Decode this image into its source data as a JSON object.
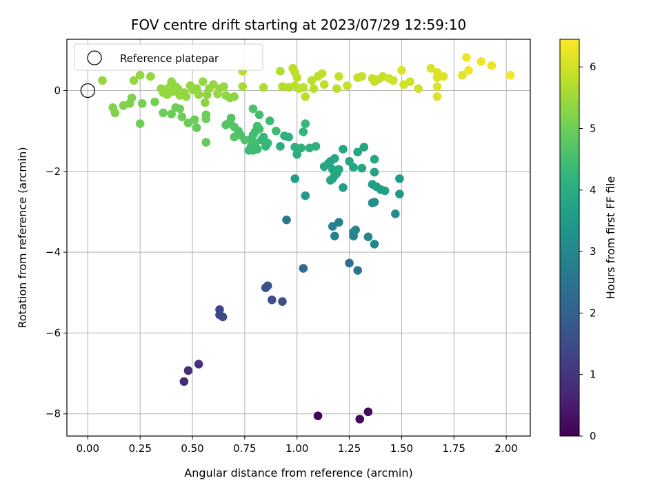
{
  "chart_data": {
    "type": "scatter",
    "title": "FOV centre drift starting at 2023/07/29 12:59:10",
    "xlabel": "Angular distance from reference (arcmin)",
    "ylabel": "Rotation from reference (arcmin)",
    "xlim": [
      -0.1,
      2.115
    ],
    "ylim": [
      -8.55,
      1.27
    ],
    "xticks": [
      0.0,
      0.25,
      0.5,
      0.75,
      1.0,
      1.25,
      1.5,
      1.75,
      2.0
    ],
    "xtick_labels": [
      "0.00",
      "0.25",
      "0.50",
      "0.75",
      "1.00",
      "1.25",
      "1.50",
      "1.75",
      "2.00"
    ],
    "yticks": [
      -8,
      -6,
      -4,
      -2,
      0
    ],
    "ytick_labels": [
      "−8",
      "−6",
      "−4",
      "−2",
      "0"
    ],
    "grid": true,
    "legend": {
      "position": "top-left",
      "entries": [
        {
          "label": "Reference platepar",
          "marker": "open-circle"
        }
      ]
    },
    "reference_point": {
      "x": 0.0,
      "y": 0.0
    },
    "colorbar": {
      "label": "Hours from first FF file",
      "colormap": "viridis",
      "range": [
        0,
        6.45
      ],
      "ticks": [
        0,
        1,
        2,
        3,
        4,
        5,
        6
      ],
      "tick_labels": [
        "0",
        "1",
        "2",
        "3",
        "4",
        "5",
        "6"
      ]
    },
    "series": [
      {
        "points": [
          {
            "x": 1.1,
            "y": -8.05,
            "c": 0.1
          },
          {
            "x": 1.3,
            "y": -8.13,
            "c": 0.15
          },
          {
            "x": 1.34,
            "y": -7.95,
            "c": 0.2
          },
          {
            "x": 0.46,
            "y": -7.2,
            "c": 0.8
          },
          {
            "x": 0.48,
            "y": -6.93,
            "c": 0.85
          },
          {
            "x": 0.53,
            "y": -6.77,
            "c": 0.9
          },
          {
            "x": 0.63,
            "y": -5.42,
            "c": 1.4
          },
          {
            "x": 0.63,
            "y": -5.55,
            "c": 1.42
          },
          {
            "x": 0.645,
            "y": -5.6,
            "c": 1.45
          },
          {
            "x": 0.85,
            "y": -4.88,
            "c": 1.6
          },
          {
            "x": 0.86,
            "y": -4.83,
            "c": 1.62
          },
          {
            "x": 0.88,
            "y": -5.18,
            "c": 1.55
          },
          {
            "x": 0.93,
            "y": -5.22,
            "c": 1.57
          },
          {
            "x": 1.03,
            "y": -4.4,
            "c": 2.2
          },
          {
            "x": 1.25,
            "y": -4.27,
            "c": 2.4
          },
          {
            "x": 1.29,
            "y": -4.45,
            "c": 2.5
          },
          {
            "x": 0.95,
            "y": -3.2,
            "c": 2.6
          },
          {
            "x": 1.17,
            "y": -3.36,
            "c": 2.8
          },
          {
            "x": 1.2,
            "y": -3.26,
            "c": 2.85
          },
          {
            "x": 1.18,
            "y": -3.6,
            "c": 2.9
          },
          {
            "x": 1.27,
            "y": -3.6,
            "c": 2.9
          },
          {
            "x": 1.27,
            "y": -3.5,
            "c": 2.95
          },
          {
            "x": 1.28,
            "y": -3.45,
            "c": 3.0
          },
          {
            "x": 1.34,
            "y": -3.62,
            "c": 3.0
          },
          {
            "x": 1.37,
            "y": -3.8,
            "c": 2.95
          },
          {
            "x": 1.36,
            "y": -2.78,
            "c": 3.2
          },
          {
            "x": 1.37,
            "y": -2.76,
            "c": 3.2
          },
          {
            "x": 1.47,
            "y": -3.05,
            "c": 3.2
          },
          {
            "x": 1.49,
            "y": -2.56,
            "c": 3.4
          },
          {
            "x": 1.49,
            "y": -2.18,
            "c": 3.5
          },
          {
            "x": 0.99,
            "y": -2.18,
            "c": 3.6
          },
          {
            "x": 1.04,
            "y": -2.6,
            "c": 3.5
          },
          {
            "x": 1.22,
            "y": -2.4,
            "c": 3.6
          },
          {
            "x": 1.36,
            "y": -2.32,
            "c": 3.6
          },
          {
            "x": 1.38,
            "y": -2.38,
            "c": 3.6
          },
          {
            "x": 1.4,
            "y": -2.45,
            "c": 3.6
          },
          {
            "x": 1.42,
            "y": -2.48,
            "c": 3.6
          },
          {
            "x": 1.37,
            "y": -2.02,
            "c": 3.7
          },
          {
            "x": 1.37,
            "y": -1.7,
            "c": 3.8
          },
          {
            "x": 1.13,
            "y": -1.88,
            "c": 3.8
          },
          {
            "x": 1.15,
            "y": -1.8,
            "c": 3.8
          },
          {
            "x": 1.16,
            "y": -2.22,
            "c": 3.8
          },
          {
            "x": 1.17,
            "y": -2.18,
            "c": 3.8
          },
          {
            "x": 1.18,
            "y": -2.1,
            "c": 3.8
          },
          {
            "x": 1.19,
            "y": -2.05,
            "c": 3.8
          },
          {
            "x": 1.17,
            "y": -1.95,
            "c": 3.8
          },
          {
            "x": 1.16,
            "y": -1.75,
            "c": 3.8
          },
          {
            "x": 1.18,
            "y": -1.68,
            "c": 3.8
          },
          {
            "x": 1.2,
            "y": -1.95,
            "c": 3.8
          },
          {
            "x": 1.22,
            "y": -1.45,
            "c": 3.8
          },
          {
            "x": 1.25,
            "y": -1.75,
            "c": 3.8
          },
          {
            "x": 1.27,
            "y": -1.9,
            "c": 3.8
          },
          {
            "x": 1.29,
            "y": -1.52,
            "c": 3.8
          },
          {
            "x": 1.31,
            "y": -1.92,
            "c": 3.8
          },
          {
            "x": 1.32,
            "y": -1.4,
            "c": 3.8
          },
          {
            "x": 0.92,
            "y": -1.38,
            "c": 4.0
          },
          {
            "x": 0.94,
            "y": -1.12,
            "c": 4.1
          },
          {
            "x": 0.96,
            "y": -1.15,
            "c": 4.1
          },
          {
            "x": 0.99,
            "y": -1.4,
            "c": 4.1
          },
          {
            "x": 1.0,
            "y": -1.58,
            "c": 4.0
          },
          {
            "x": 1.02,
            "y": -1.42,
            "c": 4.1
          },
          {
            "x": 1.03,
            "y": -1.02,
            "c": 4.2
          },
          {
            "x": 1.04,
            "y": -0.82,
            "c": 4.3
          },
          {
            "x": 1.06,
            "y": -1.42,
            "c": 4.1
          },
          {
            "x": 1.09,
            "y": -1.38,
            "c": 4.1
          },
          {
            "x": 0.83,
            "y": -1.22,
            "c": 4.3
          },
          {
            "x": 0.84,
            "y": -1.15,
            "c": 4.3
          },
          {
            "x": 0.85,
            "y": -1.38,
            "c": 4.3
          },
          {
            "x": 0.86,
            "y": -1.3,
            "c": 4.3
          },
          {
            "x": 0.87,
            "y": -0.75,
            "c": 4.4
          },
          {
            "x": 0.9,
            "y": -1.0,
            "c": 4.4
          },
          {
            "x": 0.82,
            "y": -0.6,
            "c": 4.5
          },
          {
            "x": 0.79,
            "y": -0.45,
            "c": 4.6
          },
          {
            "x": 0.81,
            "y": -0.88,
            "c": 4.5
          },
          {
            "x": 0.82,
            "y": -0.95,
            "c": 4.5
          },
          {
            "x": 0.8,
            "y": -1.02,
            "c": 4.5
          },
          {
            "x": 0.79,
            "y": -1.1,
            "c": 4.5
          },
          {
            "x": 0.78,
            "y": -1.2,
            "c": 4.5
          },
          {
            "x": 0.8,
            "y": -1.3,
            "c": 4.5
          },
          {
            "x": 0.78,
            "y": -1.38,
            "c": 4.5
          },
          {
            "x": 0.79,
            "y": -1.48,
            "c": 4.4
          },
          {
            "x": 0.77,
            "y": -1.48,
            "c": 4.4
          },
          {
            "x": 0.81,
            "y": -1.45,
            "c": 4.4
          },
          {
            "x": 0.75,
            "y": -1.22,
            "c": 4.6
          },
          {
            "x": 0.73,
            "y": -1.1,
            "c": 4.6
          },
          {
            "x": 0.72,
            "y": -1.0,
            "c": 4.6
          },
          {
            "x": 0.7,
            "y": -0.9,
            "c": 4.7
          },
          {
            "x": 0.68,
            "y": -0.78,
            "c": 4.7
          },
          {
            "x": 0.67,
            "y": -0.82,
            "c": 4.7
          },
          {
            "x": 0.685,
            "y": -0.68,
            "c": 4.7
          },
          {
            "x": 0.7,
            "y": -1.15,
            "c": 4.7
          },
          {
            "x": 0.66,
            "y": -0.85,
            "c": 4.7
          },
          {
            "x": 0.565,
            "y": -1.28,
            "c": 4.9
          },
          {
            "x": 0.565,
            "y": -0.6,
            "c": 5.0
          },
          {
            "x": 0.565,
            "y": -0.7,
            "c": 5.0
          },
          {
            "x": 0.52,
            "y": -0.92,
            "c": 4.9
          },
          {
            "x": 0.51,
            "y": -0.72,
            "c": 5.0
          },
          {
            "x": 0.48,
            "y": -0.8,
            "c": 5.0
          },
          {
            "x": 0.45,
            "y": -0.65,
            "c": 5.0
          },
          {
            "x": 0.44,
            "y": -0.45,
            "c": 5.0
          },
          {
            "x": 0.42,
            "y": -0.42,
            "c": 5.0
          },
          {
            "x": 0.4,
            "y": -0.58,
            "c": 5.0
          },
          {
            "x": 0.36,
            "y": -0.55,
            "c": 5.0
          },
          {
            "x": 0.25,
            "y": -0.82,
            "c": 5.0
          },
          {
            "x": 0.26,
            "y": -0.32,
            "c": 5.1
          },
          {
            "x": 0.32,
            "y": -0.28,
            "c": 5.1
          },
          {
            "x": 0.21,
            "y": -0.18,
            "c": 5.2
          },
          {
            "x": 0.2,
            "y": -0.32,
            "c": 5.2
          },
          {
            "x": 0.17,
            "y": -0.37,
            "c": 5.2
          },
          {
            "x": 0.12,
            "y": -0.42,
            "c": 5.2
          },
          {
            "x": 0.13,
            "y": -0.55,
            "c": 5.2
          },
          {
            "x": 0.07,
            "y": 0.25,
            "c": 5.4
          },
          {
            "x": 0.22,
            "y": 0.25,
            "c": 5.4
          },
          {
            "x": 0.25,
            "y": 0.38,
            "c": 5.4
          },
          {
            "x": 0.3,
            "y": 0.35,
            "c": 5.4
          },
          {
            "x": 0.35,
            "y": 0.05,
            "c": 5.4
          },
          {
            "x": 0.36,
            "y": -0.05,
            "c": 5.4
          },
          {
            "x": 0.37,
            "y": 0.02,
            "c": 5.4
          },
          {
            "x": 0.38,
            "y": -0.1,
            "c": 5.4
          },
          {
            "x": 0.39,
            "y": 0.08,
            "c": 5.4
          },
          {
            "x": 0.4,
            "y": 0.22,
            "c": 5.4
          },
          {
            "x": 0.41,
            "y": -0.02,
            "c": 5.4
          },
          {
            "x": 0.42,
            "y": 0.1,
            "c": 5.4
          },
          {
            "x": 0.43,
            "y": 0.05,
            "c": 5.4
          },
          {
            "x": 0.44,
            "y": -0.12,
            "c": 5.4
          },
          {
            "x": 0.46,
            "y": -0.05,
            "c": 5.4
          },
          {
            "x": 0.47,
            "y": -0.15,
            "c": 5.4
          },
          {
            "x": 0.49,
            "y": 0.12,
            "c": 5.4
          },
          {
            "x": 0.5,
            "y": 0.02,
            "c": 5.4
          },
          {
            "x": 0.52,
            "y": 0.05,
            "c": 5.4
          },
          {
            "x": 0.53,
            "y": -0.1,
            "c": 5.4
          },
          {
            "x": 0.55,
            "y": 0.22,
            "c": 5.4
          },
          {
            "x": 0.56,
            "y": -0.3,
            "c": 5.3
          },
          {
            "x": 0.57,
            "y": -0.1,
            "c": 5.3
          },
          {
            "x": 0.58,
            "y": 0.05,
            "c": 5.4
          },
          {
            "x": 0.6,
            "y": 0.15,
            "c": 5.4
          },
          {
            "x": 0.62,
            "y": -0.08,
            "c": 5.4
          },
          {
            "x": 0.63,
            "y": 0.05,
            "c": 5.4
          },
          {
            "x": 0.65,
            "y": 0.1,
            "c": 5.4
          },
          {
            "x": 0.66,
            "y": -0.12,
            "c": 5.4
          },
          {
            "x": 0.68,
            "y": -0.18,
            "c": 5.3
          },
          {
            "x": 0.7,
            "y": -0.15,
            "c": 5.3
          },
          {
            "x": 0.74,
            "y": 0.1,
            "c": 5.6
          },
          {
            "x": 0.74,
            "y": 0.48,
            "c": 5.7
          },
          {
            "x": 0.84,
            "y": 0.08,
            "c": 5.7
          },
          {
            "x": 0.92,
            "y": 0.48,
            "c": 5.7
          },
          {
            "x": 0.93,
            "y": 0.1,
            "c": 5.7
          },
          {
            "x": 0.96,
            "y": 0.08,
            "c": 5.7
          },
          {
            "x": 0.98,
            "y": 0.55,
            "c": 5.8
          },
          {
            "x": 0.99,
            "y": 0.45,
            "c": 5.8
          },
          {
            "x": 0.99,
            "y": 0.12,
            "c": 5.8
          },
          {
            "x": 1.0,
            "y": 0.32,
            "c": 5.8
          },
          {
            "x": 1.01,
            "y": 0.05,
            "c": 5.8
          },
          {
            "x": 1.03,
            "y": 0.08,
            "c": 5.8
          },
          {
            "x": 1.04,
            "y": -0.15,
            "c": 5.8
          },
          {
            "x": 1.07,
            "y": 0.25,
            "c": 5.8
          },
          {
            "x": 1.08,
            "y": 0.05,
            "c": 5.8
          },
          {
            "x": 1.1,
            "y": 0.35,
            "c": 5.8
          },
          {
            "x": 1.12,
            "y": 0.42,
            "c": 5.8
          },
          {
            "x": 1.13,
            "y": 0.15,
            "c": 5.8
          },
          {
            "x": 1.19,
            "y": 0.05,
            "c": 5.8
          },
          {
            "x": 1.2,
            "y": 0.35,
            "c": 5.9
          },
          {
            "x": 1.24,
            "y": 0.12,
            "c": 5.9
          },
          {
            "x": 1.29,
            "y": 0.32,
            "c": 5.9
          },
          {
            "x": 1.31,
            "y": 0.35,
            "c": 5.9
          },
          {
            "x": 1.36,
            "y": 0.3,
            "c": 5.9
          },
          {
            "x": 1.37,
            "y": 0.22,
            "c": 5.9
          },
          {
            "x": 1.39,
            "y": 0.28,
            "c": 5.9
          },
          {
            "x": 1.41,
            "y": 0.35,
            "c": 5.9
          },
          {
            "x": 1.44,
            "y": 0.3,
            "c": 6.0
          },
          {
            "x": 1.46,
            "y": 0.25,
            "c": 6.0
          },
          {
            "x": 1.5,
            "y": 0.5,
            "c": 6.1
          },
          {
            "x": 1.51,
            "y": 0.15,
            "c": 6.0
          },
          {
            "x": 1.54,
            "y": 0.22,
            "c": 6.0
          },
          {
            "x": 1.58,
            "y": 0.05,
            "c": 6.0
          },
          {
            "x": 1.64,
            "y": 0.55,
            "c": 6.1
          },
          {
            "x": 1.67,
            "y": 0.45,
            "c": 6.1
          },
          {
            "x": 1.67,
            "y": 0.32,
            "c": 6.1
          },
          {
            "x": 1.67,
            "y": 0.1,
            "c": 6.1
          },
          {
            "x": 1.67,
            "y": -0.15,
            "c": 6.1
          },
          {
            "x": 1.7,
            "y": 0.35,
            "c": 6.1
          },
          {
            "x": 1.79,
            "y": 0.38,
            "c": 6.2
          },
          {
            "x": 1.81,
            "y": 0.82,
            "c": 6.3
          },
          {
            "x": 1.82,
            "y": 0.5,
            "c": 6.3
          },
          {
            "x": 1.88,
            "y": 0.72,
            "c": 6.3
          },
          {
            "x": 1.93,
            "y": 0.62,
            "c": 6.3
          },
          {
            "x": 2.02,
            "y": 0.38,
            "c": 6.4
          }
        ]
      }
    ]
  }
}
